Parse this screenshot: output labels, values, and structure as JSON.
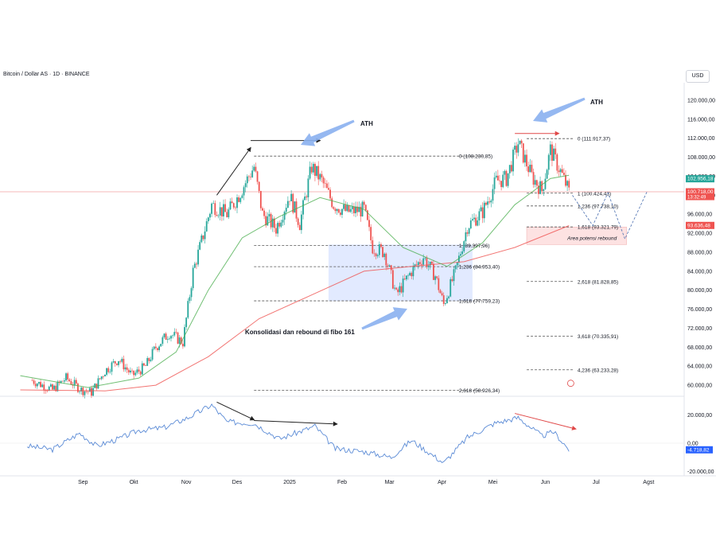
{
  "chart_title": "Bitcoin / Dollar AS · 1D · BINANCE",
  "currency": "USD",
  "colors": {
    "up": "#26a69a",
    "down": "#ef5350",
    "ema_short": "#4caf50",
    "ema_long": "#ef5350",
    "oscillator": "#5b8bd6",
    "fib_line": "#555555",
    "consolidation_box": "#d8e3ff",
    "rebound_box": "#fde2e2",
    "annotation_arrow": "#8ab0f0",
    "price_badge_green": "#26a69a",
    "price_badge_red": "#ef5350",
    "osc_badge": "#2962ff"
  },
  "chart_data": [
    {
      "type": "candlestick",
      "xlabels": [
        "Sep",
        "Okt",
        "Nov",
        "Des",
        "2025",
        "Feb",
        "Mar",
        "Apr",
        "Mei",
        "Jun",
        "Jul",
        "Agst"
      ],
      "y_ticks": [
        "120.000,00",
        "116.000,00",
        "112.000,00",
        "108.000,00",
        "104.000,00",
        "100.000,00",
        "96.000,00",
        "92.000,00",
        "88.000,00",
        "84.000,00",
        "80.000,00",
        "76.000,00",
        "72.000,00",
        "68.000,00",
        "64.000,00",
        "60.000,00"
      ],
      "ylim": [
        58000,
        122000
      ],
      "close_path": [
        {
          "x": "2024-08-08",
          "y": 61000
        },
        {
          "x": "2024-08-20",
          "y": 59000
        },
        {
          "x": "2024-08-28",
          "y": 61500
        },
        {
          "x": "2024-09-06",
          "y": 59000
        },
        {
          "x": "2024-09-12",
          "y": 58500
        },
        {
          "x": "2024-09-20",
          "y": 63000
        },
        {
          "x": "2024-09-28",
          "y": 65500
        },
        {
          "x": "2024-10-06",
          "y": 62000
        },
        {
          "x": "2024-10-14",
          "y": 64000
        },
        {
          "x": "2024-10-20",
          "y": 68000
        },
        {
          "x": "2024-10-28",
          "y": 71000
        },
        {
          "x": "2024-11-05",
          "y": 69000
        },
        {
          "x": "2024-11-11",
          "y": 84000
        },
        {
          "x": "2024-11-15",
          "y": 89000
        },
        {
          "x": "2024-11-22",
          "y": 98000
        },
        {
          "x": "2024-12-01",
          "y": 96000
        },
        {
          "x": "2024-12-08",
          "y": 100000
        },
        {
          "x": "2024-12-17",
          "y": 106000
        },
        {
          "x": "2024-12-22",
          "y": 96000
        },
        {
          "x": "2024-12-30",
          "y": 93000
        },
        {
          "x": "2025-01-07",
          "y": 100000
        },
        {
          "x": "2025-01-13",
          "y": 94000
        },
        {
          "x": "2025-01-20",
          "y": 106000
        },
        {
          "x": "2025-01-26",
          "y": 103000
        },
        {
          "x": "2025-02-02",
          "y": 98000
        },
        {
          "x": "2025-02-10",
          "y": 96500
        },
        {
          "x": "2025-02-20",
          "y": 97000
        },
        {
          "x": "2025-02-25",
          "y": 89000
        },
        {
          "x": "2025-03-04",
          "y": 88000
        },
        {
          "x": "2025-03-11",
          "y": 79000
        },
        {
          "x": "2025-03-20",
          "y": 84000
        },
        {
          "x": "2025-03-27",
          "y": 87000
        },
        {
          "x": "2025-04-03",
          "y": 83000
        },
        {
          "x": "2025-04-08",
          "y": 77000
        },
        {
          "x": "2025-04-15",
          "y": 84000
        },
        {
          "x": "2025-04-22",
          "y": 93500
        },
        {
          "x": "2025-05-01",
          "y": 96500
        },
        {
          "x": "2025-05-09",
          "y": 103000
        },
        {
          "x": "2025-05-15",
          "y": 103500
        },
        {
          "x": "2025-05-22",
          "y": 111000
        },
        {
          "x": "2025-05-30",
          "y": 104000
        },
        {
          "x": "2025-06-05",
          "y": 101000
        },
        {
          "x": "2025-06-10",
          "y": 109500
        },
        {
          "x": "2025-06-16",
          "y": 105000
        },
        {
          "x": "2025-06-21",
          "y": 100700
        }
      ],
      "ema_short": [
        {
          "x": "2024-08-01",
          "y": 62000
        },
        {
          "x": "2024-09-10",
          "y": 59500
        },
        {
          "x": "2024-10-10",
          "y": 61500
        },
        {
          "x": "2024-11-01",
          "y": 67000
        },
        {
          "x": "2024-11-20",
          "y": 80000
        },
        {
          "x": "2024-12-10",
          "y": 91000
        },
        {
          "x": "2025-01-01",
          "y": 95500
        },
        {
          "x": "2025-01-25",
          "y": 99500
        },
        {
          "x": "2025-02-20",
          "y": 97000
        },
        {
          "x": "2025-03-15",
          "y": 89000
        },
        {
          "x": "2025-04-10",
          "y": 85000
        },
        {
          "x": "2025-05-01",
          "y": 90000
        },
        {
          "x": "2025-05-20",
          "y": 98000
        },
        {
          "x": "2025-06-10",
          "y": 103500
        },
        {
          "x": "2025-06-21",
          "y": 104200
        }
      ],
      "ema_long": [
        {
          "x": "2024-08-01",
          "y": 59000
        },
        {
          "x": "2024-09-20",
          "y": 58800
        },
        {
          "x": "2024-10-20",
          "y": 60000
        },
        {
          "x": "2024-11-20",
          "y": 66000
        },
        {
          "x": "2024-12-20",
          "y": 74000
        },
        {
          "x": "2025-01-20",
          "y": 79000
        },
        {
          "x": "2025-02-20",
          "y": 84000
        },
        {
          "x": "2025-03-20",
          "y": 85000
        },
        {
          "x": "2025-04-20",
          "y": 86000
        },
        {
          "x": "2025-05-20",
          "y": 89000
        },
        {
          "x": "2025-06-21",
          "y": 93600
        }
      ],
      "fib_levels": [
        {
          "label": "0 (111.917,37)",
          "value": 111917.37
        },
        {
          "label": "0 (108.230,85)",
          "value": 108230.85
        },
        {
          "label": "1 (100.424,43)",
          "value": 100424.43
        },
        {
          "label": "1,236 (97.738,10)",
          "value": 97738.1
        },
        {
          "label": "1,618 (93.321,79)",
          "value": 93321.79
        },
        {
          "label": "1 (89.397,96)",
          "value": 89397.96
        },
        {
          "label": "1,236 (84.953,40)",
          "value": 84953.4
        },
        {
          "label": "2,618 (81.828,85)",
          "value": 81828.85
        },
        {
          "label": "1,618 (77.759,23)",
          "value": 77759.23
        },
        {
          "label": "3,618 (70.335,91)",
          "value": 70335.91
        },
        {
          "label": "4,236 (63.233,28)",
          "value": 63233.28
        },
        {
          "label": "2,618 (58.926,34)",
          "value": 58926.34
        }
      ],
      "annotations": [
        "ATH",
        "ATH",
        "Konsolidasi dan rebound di fibo 161",
        "Area potensi rebound"
      ],
      "price_badges": [
        {
          "label": "102.956,18",
          "value": 102956.18,
          "color": "green"
        },
        {
          "label": "100.718,00",
          "sublabel": "13:32:49",
          "value": 100718.0,
          "color": "red"
        },
        {
          "label": "93.636,48",
          "value": 93636.48,
          "color": "red"
        }
      ]
    },
    {
      "type": "line",
      "name_role": "oscillator",
      "y_ticks": [
        "20.000,00",
        "0,00",
        "-20.000,00"
      ],
      "ylim": [
        -22000,
        32000
      ],
      "current_label": "-4.718,82",
      "values": [
        {
          "x": "2024-08-05",
          "y": -2000
        },
        {
          "x": "2024-08-20",
          "y": -4500
        },
        {
          "x": "2024-09-05",
          "y": 7000
        },
        {
          "x": "2024-09-15",
          "y": -2000
        },
        {
          "x": "2024-09-28",
          "y": 3000
        },
        {
          "x": "2024-10-10",
          "y": 9000
        },
        {
          "x": "2024-10-25",
          "y": 11000
        },
        {
          "x": "2024-11-08",
          "y": 18000
        },
        {
          "x": "2024-11-22",
          "y": 27000
        },
        {
          "x": "2024-12-01",
          "y": 15000
        },
        {
          "x": "2024-12-17",
          "y": 14000
        },
        {
          "x": "2025-01-01",
          "y": 3000
        },
        {
          "x": "2025-01-22",
          "y": 12000
        },
        {
          "x": "2025-02-03",
          "y": -4000
        },
        {
          "x": "2025-02-20",
          "y": -6000
        },
        {
          "x": "2025-03-08",
          "y": -10000
        },
        {
          "x": "2025-03-20",
          "y": 2000
        },
        {
          "x": "2025-04-08",
          "y": -14000
        },
        {
          "x": "2025-04-22",
          "y": 4000
        },
        {
          "x": "2025-05-08",
          "y": 14000
        },
        {
          "x": "2025-05-22",
          "y": 18000
        },
        {
          "x": "2025-06-05",
          "y": 5000
        },
        {
          "x": "2025-06-12",
          "y": 8000
        },
        {
          "x": "2025-06-21",
          "y": -4718.82
        }
      ]
    }
  ]
}
